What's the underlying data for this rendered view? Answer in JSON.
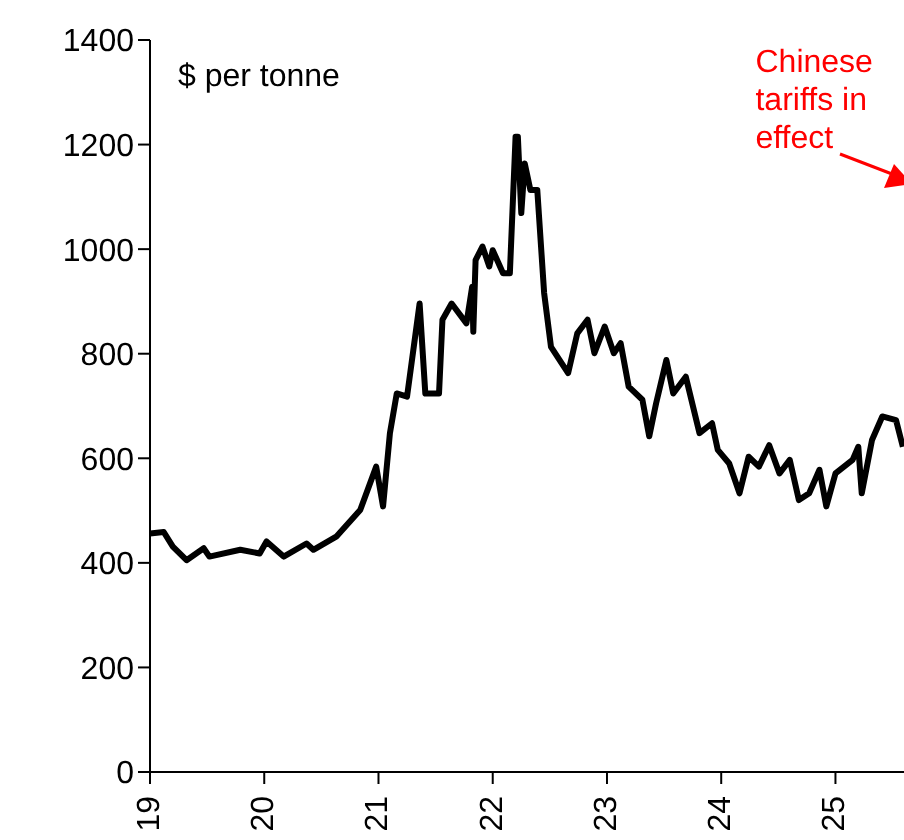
{
  "chart_data": {
    "type": "line",
    "ylabel": "$ per tonne",
    "annotations": [
      "Chinese tariffs in effect"
    ],
    "x": [
      2019.0,
      2019.12,
      2019.2,
      2019.32,
      2019.47,
      2019.52,
      2019.79,
      2019.96,
      2020.02,
      2020.17,
      2020.37,
      2020.43,
      2020.63,
      2020.84,
      2020.98,
      2021.04,
      2021.1,
      2021.16,
      2021.25,
      2021.36,
      2021.41,
      2021.53,
      2021.56,
      2021.64,
      2021.77,
      2021.82,
      2021.83,
      2021.85,
      2021.91,
      2021.97,
      2022.0,
      2022.09,
      2022.15,
      2022.2,
      2022.22,
      2022.25,
      2022.28,
      2022.33,
      2022.39,
      2022.45,
      2022.51,
      2022.66,
      2022.74,
      2022.83,
      2022.89,
      2022.98,
      2023.06,
      2023.12,
      2023.19,
      2023.31,
      2023.37,
      2023.43,
      2023.52,
      2023.58,
      2023.69,
      2023.81,
      2023.92,
      2023.97,
      2024.07,
      2024.16,
      2024.24,
      2024.33,
      2024.42,
      2024.51,
      2024.6,
      2024.68,
      2024.77,
      2024.86,
      2024.92,
      2025.0,
      2025.15,
      2025.2,
      2025.23,
      2025.32,
      2025.41,
      2025.53,
      2025.59
    ],
    "series": [
      {
        "color": "#000000",
        "values": [
          456,
          459,
          431,
          405,
          428,
          412,
          425,
          418,
          441,
          412,
          437,
          425,
          450,
          501,
          584,
          508,
          648,
          724,
          718,
          896,
          724,
          724,
          865,
          896,
          858,
          928,
          842,
          979,
          1005,
          967,
          998,
          954,
          954,
          1215,
          1215,
          1069,
          1164,
          1113,
          1113,
          916,
          813,
          763,
          839,
          865,
          801,
          852,
          801,
          820,
          737,
          712,
          642,
          705,
          788,
          724,
          756,
          648,
          667,
          616,
          590,
          533,
          603,
          584,
          625,
          571,
          597,
          520,
          533,
          578,
          508,
          571,
          597,
          622,
          533,
          635,
          680,
          673,
          622
        ]
      }
    ],
    "xlim": [
      2019,
      2025.6
    ],
    "xticks": [
      {
        "value": 2019,
        "label": "19"
      },
      {
        "value": 2020,
        "label": "20"
      },
      {
        "value": 2021,
        "label": "21"
      },
      {
        "value": 2022,
        "label": "22"
      },
      {
        "value": 2023,
        "label": "23"
      },
      {
        "value": 2024,
        "label": "24"
      },
      {
        "value": 2025,
        "label": "25"
      }
    ],
    "ylim": [
      0,
      1400
    ],
    "yticks": [
      0,
      200,
      400,
      600,
      800,
      1000,
      1200,
      1400
    ],
    "line_style": "solid",
    "marker": "none"
  }
}
